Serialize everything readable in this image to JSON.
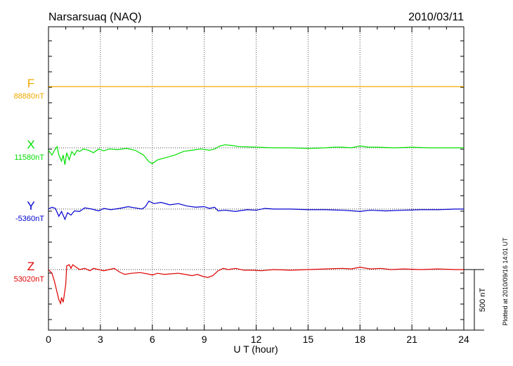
{
  "header": {
    "station": "Narsarsuaq (NAQ)",
    "date": "2010/03/11"
  },
  "footer": {
    "plotted": "Plotted at 2010/09/16 14:01 UT"
  },
  "scale_bar": {
    "label": "500 nT",
    "value": 500
  },
  "chart_data": {
    "type": "line",
    "xlabel": "U T (hour)",
    "xlim": [
      0,
      24
    ],
    "xticks": [
      0,
      3,
      6,
      9,
      12,
      15,
      18,
      21,
      24
    ],
    "series": [
      {
        "name": "F",
        "baseline_label": "88880nT",
        "color": "#f0a800",
        "points": [
          [
            0,
            0
          ],
          [
            24,
            0
          ]
        ]
      },
      {
        "name": "X",
        "baseline_label": "11580nT",
        "color": "#00e000",
        "points": [
          [
            0,
            -20
          ],
          [
            0.2,
            -60
          ],
          [
            0.35,
            -20
          ],
          [
            0.5,
            10
          ],
          [
            0.6,
            -60
          ],
          [
            0.75,
            -110
          ],
          [
            0.85,
            -60
          ],
          [
            0.95,
            -140
          ],
          [
            1.05,
            -40
          ],
          [
            1.2,
            -100
          ],
          [
            1.35,
            -30
          ],
          [
            1.5,
            -60
          ],
          [
            1.65,
            -20
          ],
          [
            1.8,
            -30
          ],
          [
            2.0,
            -10
          ],
          [
            2.3,
            -20
          ],
          [
            2.6,
            -40
          ],
          [
            2.9,
            -10
          ],
          [
            3.2,
            -25
          ],
          [
            3.5,
            -10
          ],
          [
            4.0,
            -15
          ],
          [
            4.5,
            -5
          ],
          [
            5.0,
            -20
          ],
          [
            5.5,
            -60
          ],
          [
            5.8,
            -115
          ],
          [
            6.0,
            -130
          ],
          [
            6.3,
            -100
          ],
          [
            6.8,
            -80
          ],
          [
            7.3,
            -60
          ],
          [
            7.8,
            -30
          ],
          [
            8.3,
            -20
          ],
          [
            8.8,
            -10
          ],
          [
            9.3,
            -20
          ],
          [
            9.6,
            -10
          ],
          [
            9.9,
            15
          ],
          [
            10.2,
            25
          ],
          [
            10.6,
            20
          ],
          [
            11.0,
            10
          ],
          [
            12.0,
            5
          ],
          [
            13.0,
            0
          ],
          [
            14.0,
            0
          ],
          [
            15.0,
            -5
          ],
          [
            16.0,
            0
          ],
          [
            16.5,
            5
          ],
          [
            17.0,
            5
          ],
          [
            17.5,
            0
          ],
          [
            18.0,
            15
          ],
          [
            18.5,
            5
          ],
          [
            19.0,
            5
          ],
          [
            20.0,
            0
          ],
          [
            21.0,
            5
          ],
          [
            22.0,
            0
          ],
          [
            23.0,
            0
          ],
          [
            24.0,
            0
          ]
        ]
      },
      {
        "name": "Y",
        "baseline_label": "-5360nT",
        "color": "#0000d0",
        "points": [
          [
            0,
            0
          ],
          [
            0.2,
            15
          ],
          [
            0.4,
            5
          ],
          [
            0.6,
            -60
          ],
          [
            0.75,
            -20
          ],
          [
            0.95,
            -85
          ],
          [
            1.1,
            -30
          ],
          [
            1.3,
            -50
          ],
          [
            1.5,
            -15
          ],
          [
            1.8,
            -20
          ],
          [
            2.1,
            10
          ],
          [
            2.5,
            0
          ],
          [
            2.9,
            -15
          ],
          [
            3.2,
            5
          ],
          [
            3.6,
            -5
          ],
          [
            4.1,
            5
          ],
          [
            4.6,
            20
          ],
          [
            5.0,
            10
          ],
          [
            5.4,
            0
          ],
          [
            5.6,
            20
          ],
          [
            5.8,
            65
          ],
          [
            6.1,
            45
          ],
          [
            6.5,
            55
          ],
          [
            7.0,
            35
          ],
          [
            7.5,
            45
          ],
          [
            8.0,
            25
          ],
          [
            8.5,
            15
          ],
          [
            9.0,
            20
          ],
          [
            9.3,
            5
          ],
          [
            9.6,
            15
          ],
          [
            9.8,
            -15
          ],
          [
            10.2,
            -10
          ],
          [
            10.8,
            -20
          ],
          [
            11.5,
            -5
          ],
          [
            12.0,
            -10
          ],
          [
            12.5,
            5
          ],
          [
            13.0,
            0
          ],
          [
            14.0,
            0
          ],
          [
            15.0,
            -5
          ],
          [
            16.0,
            -5
          ],
          [
            17.0,
            -10
          ],
          [
            17.6,
            -15
          ],
          [
            18.0,
            -20
          ],
          [
            18.6,
            -10
          ],
          [
            19.5,
            -15
          ],
          [
            20.5,
            -10
          ],
          [
            21.5,
            -5
          ],
          [
            22.5,
            -5
          ],
          [
            23.5,
            0
          ],
          [
            24.0,
            0
          ]
        ]
      },
      {
        "name": "Z",
        "baseline_label": "53020nT",
        "color": "#e00000",
        "points": [
          [
            0,
            0
          ],
          [
            0.2,
            -30
          ],
          [
            0.35,
            -100
          ],
          [
            0.5,
            -190
          ],
          [
            0.6,
            -250
          ],
          [
            0.7,
            -280
          ],
          [
            0.75,
            -230
          ],
          [
            0.85,
            -270
          ],
          [
            0.9,
            -220
          ],
          [
            1.0,
            -120
          ],
          [
            1.05,
            30
          ],
          [
            1.2,
            40
          ],
          [
            1.3,
            10
          ],
          [
            1.4,
            40
          ],
          [
            1.6,
            20
          ],
          [
            1.8,
            0
          ],
          [
            2.1,
            10
          ],
          [
            2.4,
            -10
          ],
          [
            2.6,
            10
          ],
          [
            2.9,
            0
          ],
          [
            3.2,
            -10
          ],
          [
            3.5,
            0
          ],
          [
            3.8,
            10
          ],
          [
            4.1,
            -20
          ],
          [
            4.4,
            -40
          ],
          [
            4.8,
            -30
          ],
          [
            5.3,
            -25
          ],
          [
            5.7,
            -35
          ],
          [
            6.0,
            -45
          ],
          [
            6.3,
            -30
          ],
          [
            6.7,
            -40
          ],
          [
            7.1,
            -35
          ],
          [
            7.5,
            -30
          ],
          [
            7.9,
            -40
          ],
          [
            8.3,
            -50
          ],
          [
            8.6,
            -40
          ],
          [
            8.9,
            -55
          ],
          [
            9.2,
            -65
          ],
          [
            9.5,
            -50
          ],
          [
            9.8,
            -10
          ],
          [
            10.1,
            10
          ],
          [
            10.4,
            0
          ],
          [
            10.8,
            10
          ],
          [
            11.3,
            -5
          ],
          [
            11.8,
            -5
          ],
          [
            12.3,
            -10
          ],
          [
            13.0,
            0
          ],
          [
            14.0,
            -5
          ],
          [
            15.0,
            0
          ],
          [
            16.0,
            5
          ],
          [
            17.0,
            10
          ],
          [
            17.5,
            5
          ],
          [
            18.0,
            20
          ],
          [
            18.6,
            5
          ],
          [
            19.2,
            10
          ],
          [
            19.8,
            0
          ],
          [
            20.5,
            5
          ],
          [
            21.5,
            0
          ],
          [
            22.5,
            5
          ],
          [
            23.5,
            0
          ],
          [
            24.0,
            0
          ]
        ]
      }
    ]
  }
}
